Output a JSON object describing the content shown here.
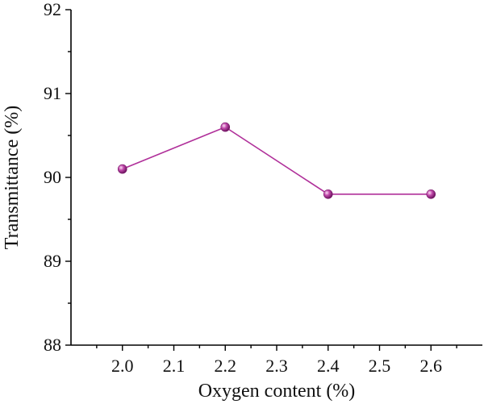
{
  "chart_data": {
    "type": "line",
    "title": "",
    "xlabel": "Oxygen content (%)",
    "ylabel": "Transmittance (%)",
    "xlim": [
      1.9,
      2.7
    ],
    "ylim": [
      88,
      92
    ],
    "x_major_ticks": [
      2.0,
      2.1,
      2.2,
      2.3,
      2.4,
      2.5,
      2.6
    ],
    "x_tick_labels": [
      "2.0",
      "2.1",
      "2.2",
      "2.3",
      "2.4",
      "2.5",
      "2.6"
    ],
    "y_major_ticks": [
      88,
      89,
      90,
      91,
      92
    ],
    "y_tick_labels": [
      "88",
      "89",
      "90",
      "91",
      "92"
    ],
    "grid": false,
    "legend": "none",
    "series": [
      {
        "x": [
          2.0,
          2.2,
          2.4,
          2.6
        ],
        "values": [
          90.1,
          90.6,
          89.8,
          89.8
        ],
        "color": "#b0309a",
        "marker": "sphere"
      }
    ]
  }
}
